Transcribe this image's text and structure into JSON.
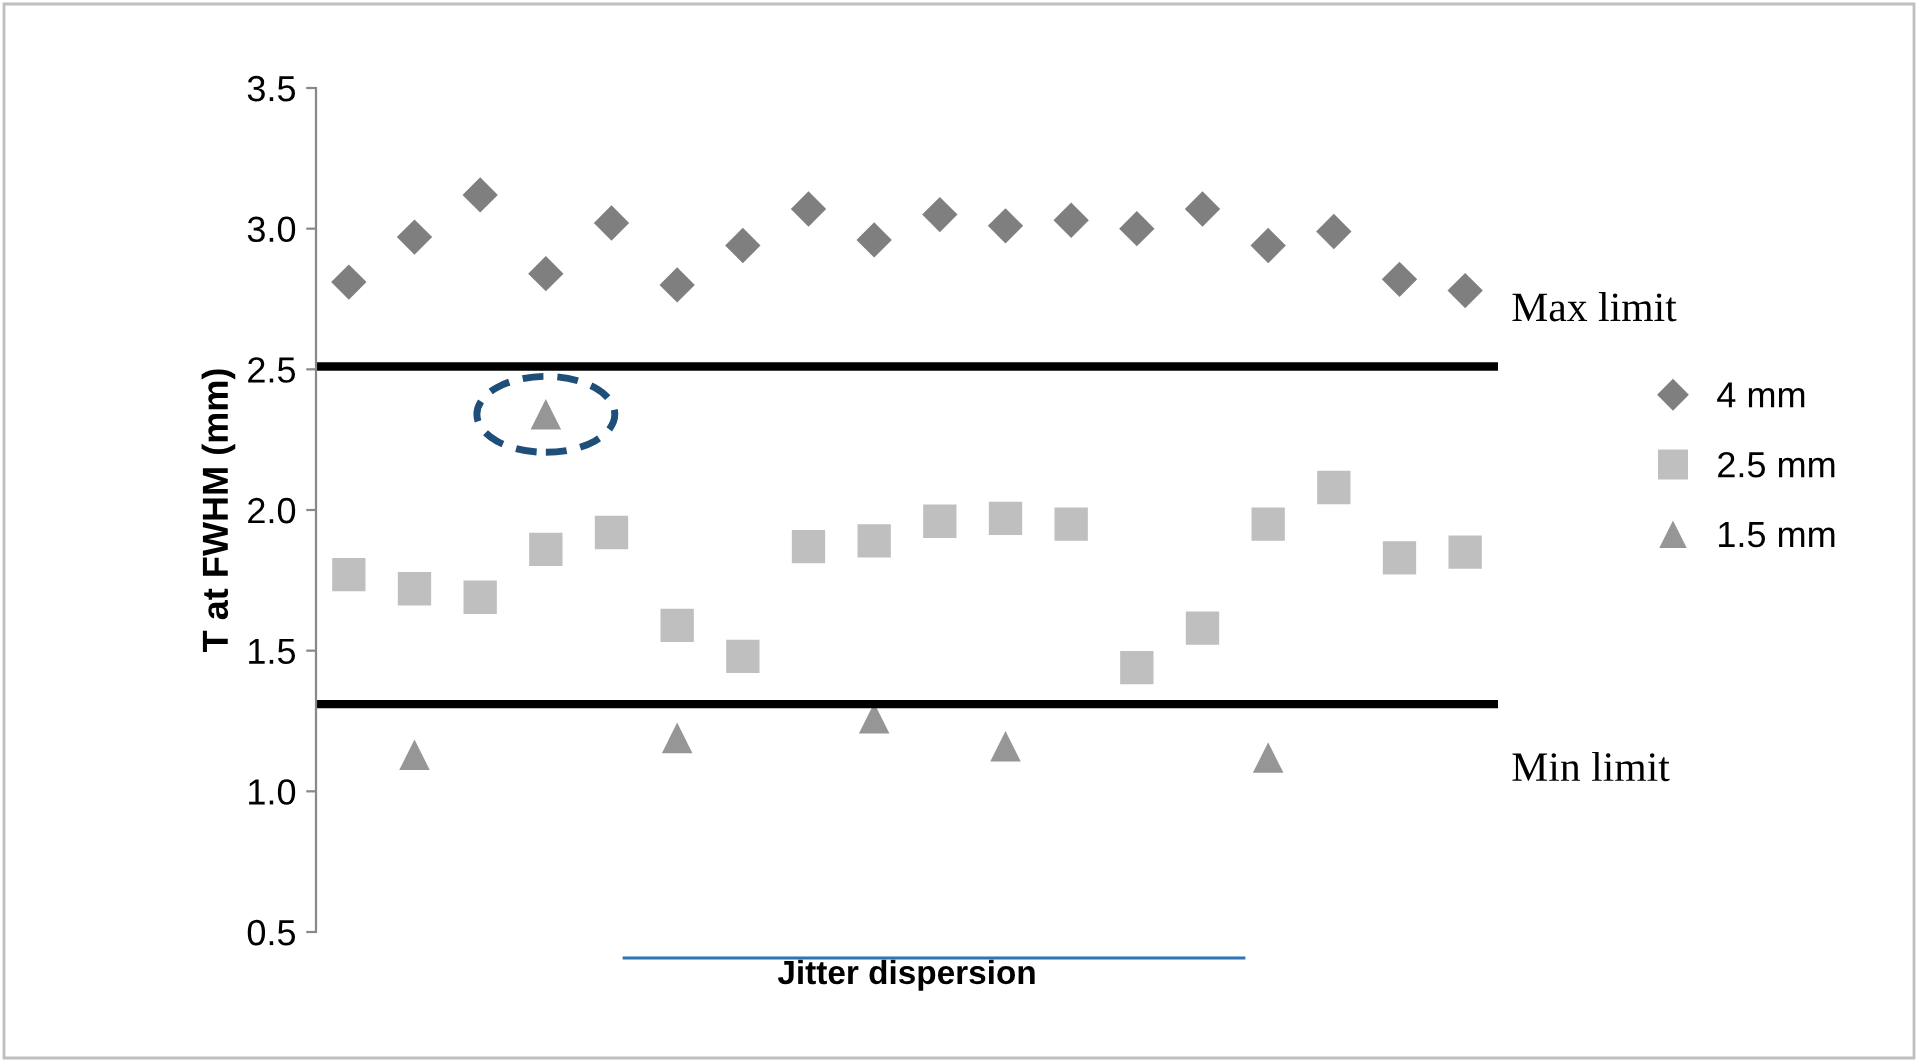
{
  "chart_data": {
    "type": "scatter",
    "xlabel": "Jitter dispersion",
    "ylabel": "T at FWHM (mm)",
    "categories": [
      null,
      null,
      null,
      null,
      null,
      null,
      null,
      null,
      null,
      null,
      null,
      null,
      null,
      null,
      null,
      null,
      null,
      null
    ],
    "series": [
      {
        "name": "4 mm",
        "color": "#7f7f7f",
        "marker": "diamond",
        "values": [
          2.81,
          2.97,
          3.12,
          2.84,
          3.02,
          2.8,
          2.94,
          3.07,
          2.96,
          3.05,
          3.01,
          3.03,
          3.0,
          3.07,
          2.94,
          2.99,
          2.82,
          2.78
        ]
      },
      {
        "name": "2.5 mm",
        "color": "#bfbfbf",
        "marker": "square",
        "values": [
          1.77,
          1.72,
          1.69,
          1.86,
          1.92,
          1.59,
          1.48,
          1.87,
          1.89,
          1.96,
          1.97,
          1.95,
          1.44,
          1.58,
          1.95,
          2.08,
          1.83,
          1.85
        ]
      },
      {
        "name": "1.5 mm",
        "color": "#969696",
        "marker": "triangle",
        "values": [
          null,
          1.13,
          null,
          2.34,
          null,
          1.19,
          null,
          null,
          1.26,
          null,
          1.16,
          null,
          null,
          null,
          1.12,
          null,
          null,
          null
        ]
      }
    ],
    "ylim": [
      0.5,
      3.5
    ],
    "yticks": [
      {
        "value": 0.5,
        "label": "0.5"
      },
      {
        "value": 1,
        "label": "1.0"
      },
      {
        "value": 1.5,
        "label": "1.5"
      },
      {
        "value": 2,
        "label": "2.0"
      },
      {
        "value": 2.5,
        "label": "2.5"
      },
      {
        "value": 3,
        "label": "3.0"
      },
      {
        "value": 3.5,
        "label": "3.5"
      }
    ],
    "ref_lines": [
      {
        "axis": "y",
        "value": 2.51,
        "label": "Max limit",
        "color": "#000000"
      },
      {
        "axis": "y",
        "value": 1.31,
        "label": "Min limit",
        "color": "#000000"
      }
    ],
    "grid": false,
    "legend": "right",
    "tick_labels": "y"
  }
}
